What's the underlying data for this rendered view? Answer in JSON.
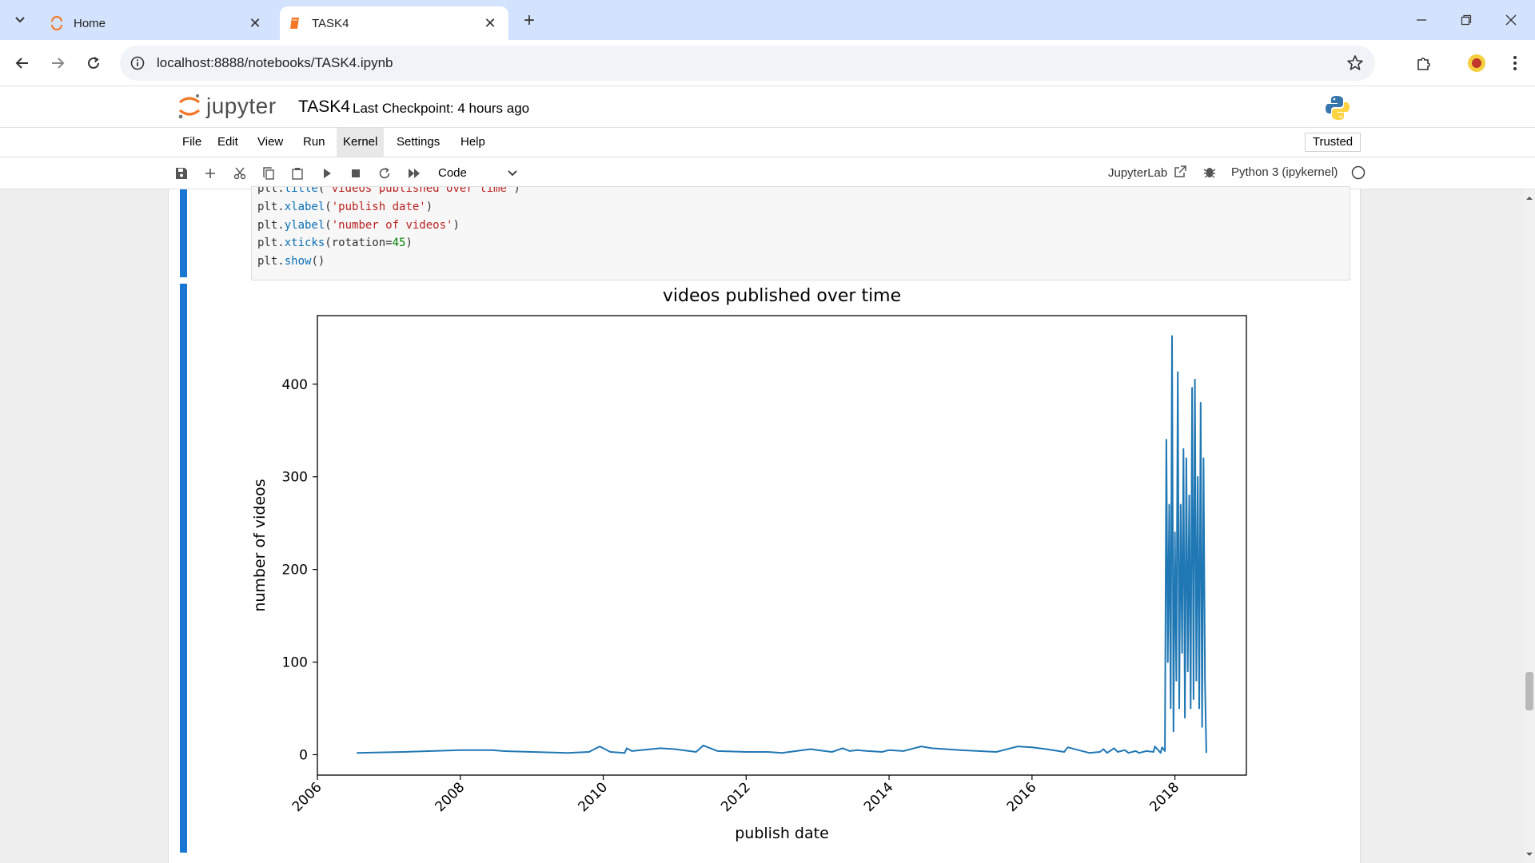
{
  "browser": {
    "tabs": [
      {
        "title": "Home",
        "icon": "jupyter-spinner-icon",
        "active": false
      },
      {
        "title": "TASK4",
        "icon": "notebook-icon",
        "active": true
      }
    ],
    "url": "localhost:8888/notebooks/TASK4.ipynb"
  },
  "jupyter": {
    "wordmark": "jupyter",
    "notebook_name": "TASK4",
    "checkpoint": "Last Checkpoint: 4 hours ago",
    "menu": [
      "File",
      "Edit",
      "View",
      "Run",
      "Kernel",
      "Settings",
      "Help"
    ],
    "active_menu": "Kernel",
    "trusted": "Trusted",
    "cell_type": "Code",
    "jupyterlab_link": "JupyterLab",
    "kernel_name": "Python 3 (ipykernel)"
  },
  "code_lines": [
    "plt.title('videos published over time')",
    "plt.xlabel('publish date')",
    "plt.ylabel('number of videos')",
    "plt.xticks(rotation=45)",
    "plt.show()"
  ],
  "chart_data": {
    "type": "line",
    "title": "videos published over time",
    "xlabel": "publish date",
    "ylabel": "number of videos",
    "x_ticks": [
      "2006",
      "2008",
      "2010",
      "2012",
      "2014",
      "2016",
      "2018"
    ],
    "y_ticks": [
      0,
      100,
      200,
      300,
      400
    ],
    "xlim": [
      2006.0,
      2019.0
    ],
    "ylim": [
      -22,
      474
    ],
    "grid": false,
    "color": "#1f77b4",
    "series": [
      {
        "x": [
          2006.55,
          2007.2,
          2008.0,
          2008.45,
          2008.6,
          2009.0,
          2009.5,
          2009.8,
          2009.95,
          2010.1,
          2010.3,
          2010.33,
          2010.4,
          2010.8,
          2011.0,
          2011.3,
          2011.4,
          2011.6,
          2012.0,
          2012.3,
          2012.5,
          2012.9,
          2013.0,
          2013.2,
          2013.35,
          2013.45,
          2013.55,
          2013.7,
          2013.9,
          2014.0,
          2014.2,
          2014.45,
          2014.6,
          2015.0,
          2015.5,
          2015.8,
          2016.0,
          2016.2,
          2016.45,
          2016.5,
          2016.8,
          2016.95,
          2017.0,
          2017.05,
          2017.15,
          2017.2,
          2017.3,
          2017.35,
          2017.45,
          2017.5,
          2017.6,
          2017.7,
          2017.72,
          2017.8,
          2017.82,
          2017.86,
          2017.88,
          2017.9,
          2017.92,
          2017.94,
          2017.96,
          2017.98,
          2018.0,
          2018.02,
          2018.04,
          2018.06,
          2018.08,
          2018.1,
          2018.12,
          2018.14,
          2018.16,
          2018.18,
          2018.2,
          2018.22,
          2018.24,
          2018.26,
          2018.28,
          2018.3,
          2018.32,
          2018.34,
          2018.36,
          2018.38,
          2018.4,
          2018.42,
          2018.44
        ],
        "y": [
          2,
          3,
          5,
          5,
          4,
          3,
          2,
          3,
          9,
          3,
          2,
          7,
          4,
          7,
          6,
          3,
          10,
          4,
          3,
          3,
          2,
          6,
          5,
          3,
          7,
          4,
          5,
          4,
          3,
          5,
          4,
          9,
          7,
          5,
          3,
          9,
          8,
          6,
          3,
          8,
          2,
          3,
          6,
          2,
          7,
          3,
          5,
          2,
          4,
          2,
          4,
          3,
          9,
          2,
          8,
          4,
          340,
          100,
          270,
          50,
          452,
          25,
          240,
          80,
          413,
          50,
          270,
          110,
          330,
          40,
          320,
          90,
          280,
          50,
          396,
          60,
          405,
          80,
          300,
          50,
          380,
          30,
          320,
          80,
          2
        ]
      }
    ]
  },
  "colors": {
    "accent": "#1976d2",
    "line": "#1f77b4",
    "tabstrip": "#d3e3fd",
    "jupyter_orange": "#f37726"
  }
}
